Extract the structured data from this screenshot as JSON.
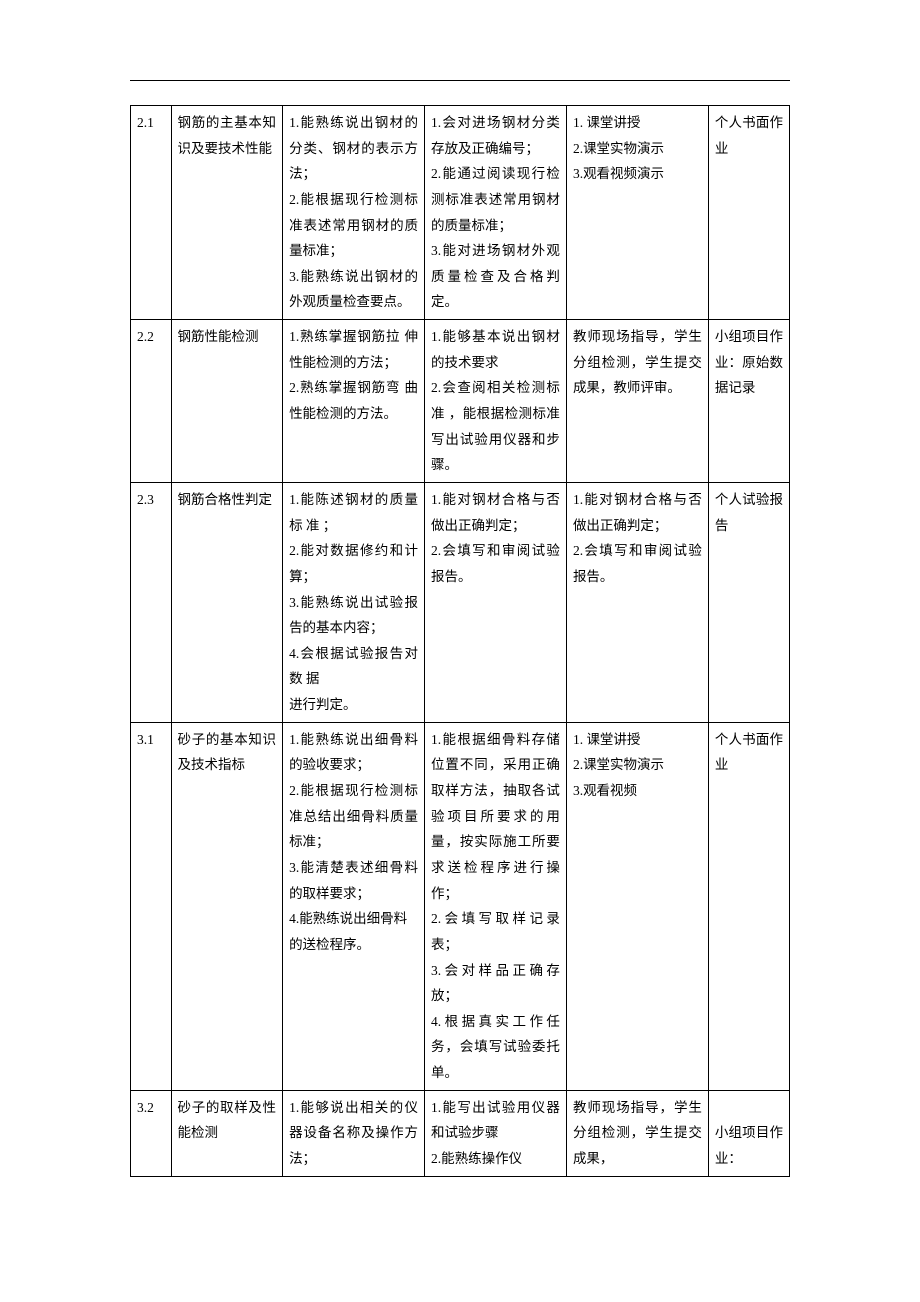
{
  "rows": [
    {
      "id": "2.1",
      "topic": "钢筋的主基本知识及要技术性能",
      "col3": "1.能熟练说出钢材的分类、钢材的表示方法；\n2.能根据现行检测标准表述常用钢材的质量标准；\n3.能熟练说出钢材的外观质量检查要点。",
      "col4": "1.会对进场钢材分类存放及正确编号；\n2.能通过阅读现行检测标准表述常用钢材的质量标准；\n3.能对进场钢材外观质量检查及合格判定。",
      "col5": "1. 课堂讲授\n2.课堂实物演示\n3.观看视频演示",
      "col6": "个人书面作业"
    },
    {
      "id": "2.2",
      "topic": "钢筋性能检测",
      "col3": "1.熟练掌握钢筋拉 伸性能检测的方法；\n2.熟练掌握钢筋弯 曲性能检测的方法。",
      "col4": "1.能够基本说出钢材的技术要求\n2.会查阅相关检测标准 ，能根据检测标准写出试验用仪器和步骤。",
      "col5": "教师现场指导，学生分组检测，学生提交成果，教师评审。",
      "col6": "小组项目作业：原始数据记录"
    },
    {
      "id": "2.3",
      "topic": "钢筋合格性判定",
      "col3": "1.能陈述钢材的质量标 准 ；\n2.能对数据修约和计算；\n3.能熟练说出试验报告的基本内容；\n4.会根据试验报告对数 据\n进行判定。",
      "col4": "1.能对钢材合格与否做出正确判定；\n2.会填写和审阅试验报告。",
      "col5": "1.能对钢材合格与否做出正确判定；\n2.会填写和审阅试验报告。",
      "col6": "个人试验报告"
    },
    {
      "id": "3.1",
      "topic": "砂子的基本知识及技术指标",
      "col3": "1.能熟练说出细骨料的验收要求；\n2.能根据现行检测标准总结出细骨料质量标准；\n3.能清楚表述细骨料的取样要求；\n4.能熟练说出细骨料\n的送检程序。",
      "col4": "1.能根据细骨料存储位置不同，采用正确取样方法，抽取各试验项目所要求的用量，按实际施工所要求送检程序进行操作；\n2.会填写取样记录表；\n3.会对样品正确存放；\n4.根据真实工作任务，会填写试验委托单。",
      "col5": "1. 课堂讲授\n2.课堂实物演示\n3.观看视频",
      "col6": "个人书面作业"
    },
    {
      "id": "3.2",
      "topic": "砂子的取样及性能检测",
      "col3": "1.能够说出相关的仪器设备名称及操作方法；",
      "col4": "1.能写出试验用仪器和试验步骤\n2.能熟练操作仪",
      "col5": "教师现场指导，学生分组检测，学生提交成果，",
      "col6": "\n小组项目作业："
    }
  ]
}
